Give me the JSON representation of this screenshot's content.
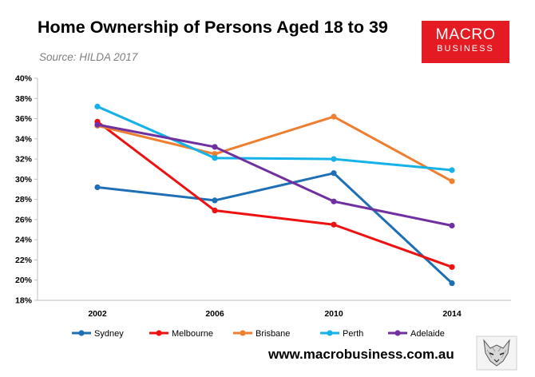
{
  "header": {
    "title": "Home Ownership of Persons Aged 18 to 39",
    "source": "Source: HILDA 2017"
  },
  "logo": {
    "line1": "MACRO",
    "line2": "BUSINESS",
    "color": "#e41b23"
  },
  "footer": {
    "url": "www.macrobusiness.com.au",
    "mascot_icon": "wolf-sketch-icon"
  },
  "chart_data": {
    "type": "line",
    "title": "Home Ownership of Persons Aged 18 to 39",
    "xlabel": "",
    "ylabel": "",
    "categories": [
      "2002",
      "2006",
      "2010",
      "2014"
    ],
    "ylim": [
      18,
      40
    ],
    "yticks": [
      18,
      20,
      22,
      24,
      26,
      28,
      30,
      32,
      34,
      36,
      38,
      40
    ],
    "ytick_labels": [
      "18%",
      "20%",
      "22%",
      "24%",
      "26%",
      "28%",
      "30%",
      "32%",
      "34%",
      "36%",
      "38%",
      "40%"
    ],
    "grid": false,
    "legend": "bottom",
    "series": [
      {
        "name": "Sydney",
        "color": "#1f6fb5",
        "values": [
          29.2,
          27.9,
          30.6,
          19.7
        ]
      },
      {
        "name": "Melbourne",
        "color": "#ee1111",
        "values": [
          35.7,
          26.9,
          25.5,
          21.3
        ]
      },
      {
        "name": "Brisbane",
        "color": "#ee7f30",
        "values": [
          35.3,
          32.5,
          36.2,
          29.8
        ]
      },
      {
        "name": "Perth",
        "color": "#15b2ea",
        "values": [
          37.2,
          32.1,
          32.0,
          30.9
        ]
      },
      {
        "name": "Adelaide",
        "color": "#7030a0",
        "values": [
          35.4,
          33.2,
          27.8,
          25.4
        ]
      }
    ]
  }
}
